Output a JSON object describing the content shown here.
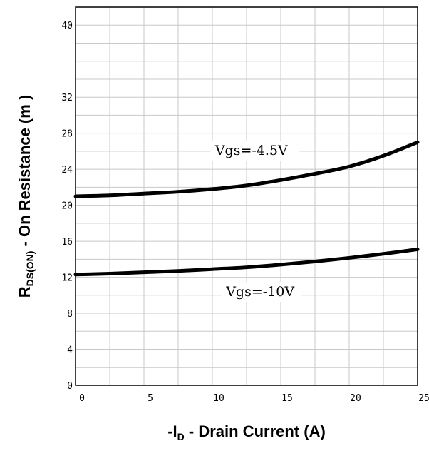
{
  "chart_data": {
    "type": "line",
    "title": "",
    "xlabel": {
      "prefix": "-I",
      "subscript": "D",
      "suffix": " - Drain Current (A)"
    },
    "ylabel": {
      "prefix": "R",
      "subscript": "DS(ON)",
      "suffix": " - On Resistance (m   )"
    },
    "xlim": [
      0,
      25
    ],
    "ylim": [
      0,
      42
    ],
    "x_ticks": [
      0,
      5,
      10,
      15,
      20,
      25
    ],
    "y_ticks": [
      0,
      4,
      8,
      12,
      16,
      20,
      24,
      28,
      32,
      40
    ],
    "grid": true,
    "series": [
      {
        "name": "Vgs=-4.5V",
        "x": [
          0,
          2.5,
          5,
          7.5,
          10,
          12.5,
          15,
          17.5,
          20,
          22.5,
          25
        ],
        "y": [
          21.0,
          21.1,
          21.3,
          21.5,
          21.8,
          22.2,
          22.8,
          23.5,
          24.3,
          25.5,
          27.0
        ]
      },
      {
        "name": "Vgs=-10V",
        "x": [
          0,
          2.5,
          5,
          7.5,
          10,
          12.5,
          15,
          17.5,
          20,
          22.5,
          25
        ],
        "y": [
          12.3,
          12.4,
          12.55,
          12.7,
          12.9,
          13.1,
          13.4,
          13.75,
          14.15,
          14.6,
          15.1
        ]
      }
    ],
    "annotations": [
      {
        "text": "Vgs=-4.5V",
        "x": 10.2,
        "y": 25.6
      },
      {
        "text": "Vgs=-10V",
        "x": 11.0,
        "y": 9.9
      }
    ]
  }
}
